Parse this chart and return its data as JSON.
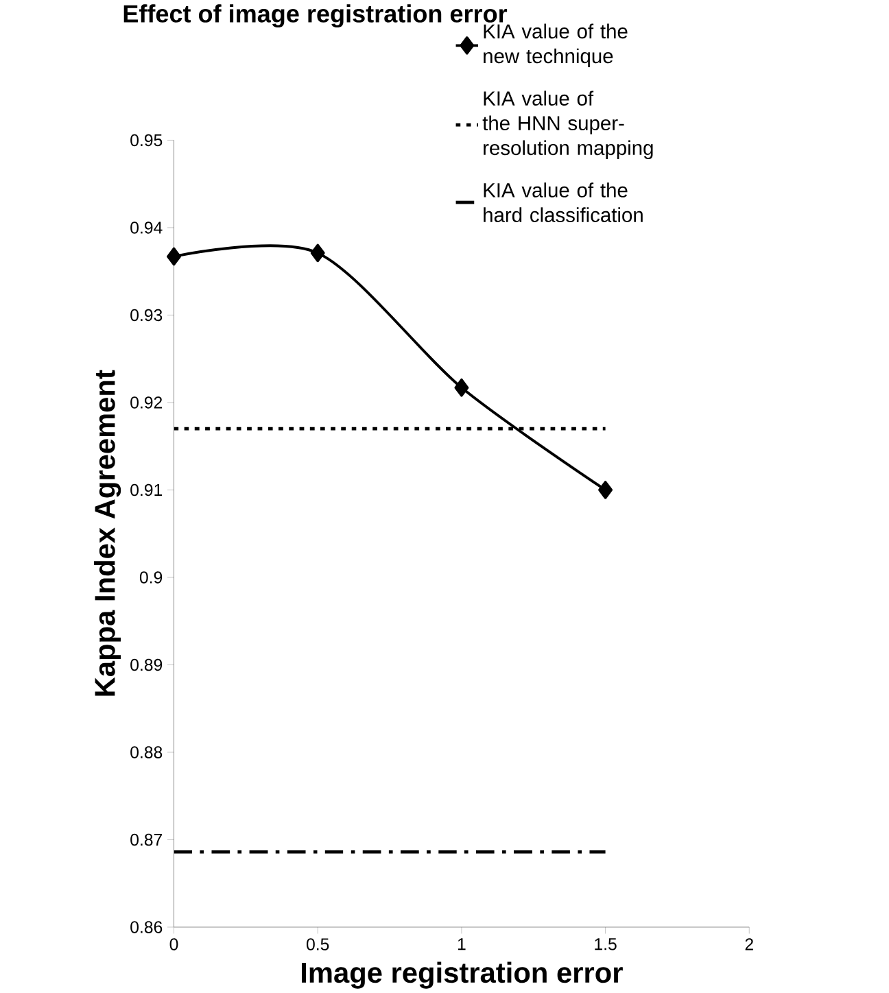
{
  "chart_data": {
    "type": "line",
    "title": "Effect of image registration error",
    "xlabel": "Image registration error",
    "ylabel": "Kappa Index Agreement",
    "x": [
      0,
      0.5,
      1,
      1.5
    ],
    "series": [
      {
        "name": "KIA value of the new technique",
        "color": "#000000",
        "values": [
          0.9367,
          0.9371,
          0.9217,
          0.91
        ],
        "marker": "diamond",
        "line_style": "solid"
      },
      {
        "name": "KIA value of the HNN super-resolution mapping",
        "color": "#000000",
        "values": [
          0.917,
          0.917,
          0.917,
          0.917
        ],
        "marker": "none",
        "line_style": "dotted"
      },
      {
        "name": "KIA value of the hard classification",
        "color": "#000000",
        "values": [
          0.8686,
          0.8686,
          0.8686,
          0.8686
        ],
        "marker": "none",
        "line_style": "dashdot"
      }
    ],
    "xlim": [
      0,
      2
    ],
    "xticks": [
      0,
      0.5,
      1,
      1.5,
      2
    ],
    "ylim": [
      0.86,
      0.95
    ],
    "yticks": [
      0.86,
      0.87,
      0.88,
      0.89,
      0.9,
      0.91,
      0.92,
      0.93,
      0.94,
      0.95
    ],
    "grid": false,
    "legend": "top right"
  }
}
